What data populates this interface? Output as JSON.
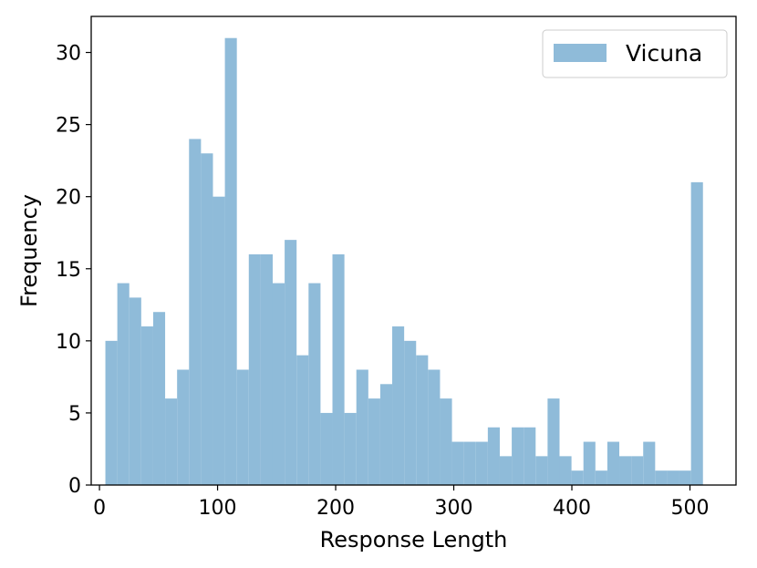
{
  "chart_data": {
    "type": "bar",
    "xlabel": "Response Length",
    "ylabel": "Frequency",
    "xlim": [
      -7,
      539
    ],
    "ylim": [
      0,
      32.5
    ],
    "x_ticks": [
      0,
      100,
      200,
      300,
      400,
      500
    ],
    "y_ticks": [
      0,
      5,
      10,
      15,
      20,
      25,
      30
    ],
    "grid": false,
    "legend_position": "top-right",
    "bin_start": 5,
    "bin_width": 10.12,
    "series": [
      {
        "name": "Vicuna",
        "color": "#8fbbd9",
        "values": [
          10,
          14,
          13,
          11,
          12,
          6,
          8,
          24,
          23,
          20,
          31,
          8,
          16,
          16,
          14,
          17,
          9,
          14,
          5,
          16,
          5,
          8,
          6,
          7,
          11,
          10,
          9,
          8,
          6,
          3,
          3,
          3,
          4,
          2,
          4,
          4,
          2,
          6,
          2,
          1,
          3,
          1,
          3,
          2,
          2,
          3,
          1,
          1,
          1,
          21
        ]
      }
    ]
  }
}
